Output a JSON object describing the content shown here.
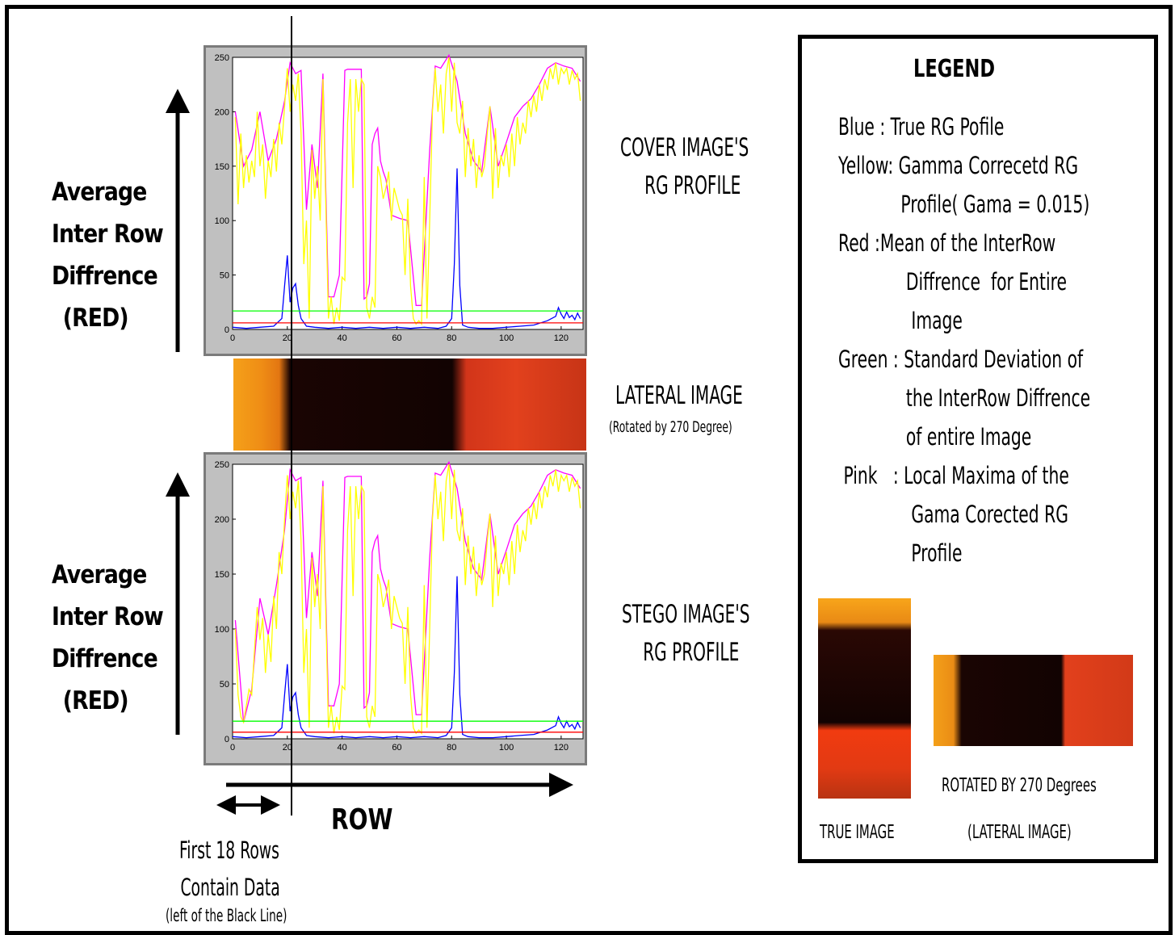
{
  "left_labels": {
    "top": [
      "Average",
      "Inter Row",
      "Diffrence",
      "(RED)"
    ],
    "bottom": [
      "Average",
      "Inter Row",
      "Diffrence",
      "(RED)"
    ]
  },
  "titles": {
    "cover": [
      "COVER IMAGE'S",
      "RG PROFILE"
    ],
    "lateral": "LATERAL IMAGE",
    "lateral_sub": "(Rotated by 270 Degree)",
    "stego": [
      "STEGO IMAGE'S",
      "RG PROFILE"
    ]
  },
  "bottom_labels": {
    "row": "ROW",
    "note": [
      "First 18 Rows",
      "Contain Data",
      "(left of the Black Line)"
    ]
  },
  "legend": {
    "title": "LEGEND",
    "items": [
      "Blue   : True RG Pofile",
      "Yellow: Gamma Correcetd RG",
      "            Profile( Gama = 0.015)",
      "Red    :Mean of the InterRow",
      "             Diffrence  for Entire",
      "              Image",
      "Green : Standard Deviation of",
      "             the InterRow Diffrence",
      "             of entire Image",
      " Pink   : Local Maxima of the",
      "              Gama Corected RG",
      "              Profile"
    ],
    "true_image_label": "TRUE IMAGE",
    "rotated_label": "ROTATED BY 270 Degrees",
    "lateral_label": "(LATERAL IMAGE)"
  },
  "colors": {
    "blue": "#0000ff",
    "yellow": "#ffff00",
    "red": "#ff0000",
    "green": "#00ff00",
    "pink": "#ff00ff",
    "plot_bg": "#c0c0c0"
  },
  "chart_data": [
    {
      "type": "line",
      "xlim": [
        0,
        128
      ],
      "ylim": [
        0,
        250
      ],
      "xticks": [
        0,
        20,
        40,
        60,
        80,
        100,
        120
      ],
      "yticks": [
        0,
        50,
        100,
        150,
        200,
        250
      ],
      "series": [
        {
          "name": "Pink",
          "color": "#ff00ff",
          "x": [
            1,
            4,
            7,
            10,
            13,
            16,
            19,
            21,
            23,
            25,
            27,
            29,
            31,
            33,
            35,
            37,
            39,
            41,
            42,
            43,
            46,
            47,
            48,
            49,
            50,
            51,
            52,
            53,
            54,
            55,
            56,
            58,
            61,
            64,
            67,
            68,
            69,
            72,
            74,
            76,
            79,
            82,
            85,
            88,
            91,
            94,
            97,
            100,
            103,
            106,
            109,
            112,
            115,
            118,
            121,
            124,
            127
          ],
          "y": [
            200,
            150,
            165,
            200,
            155,
            175,
            210,
            245,
            235,
            238,
            110,
            170,
            130,
            235,
            30,
            30,
            50,
            238,
            239,
            239,
            239,
            239,
            28,
            30,
            42,
            170,
            180,
            185,
            155,
            145,
            138,
            105,
            102,
            100,
            22,
            22,
            22,
            165,
            242,
            240,
            252,
            228,
            180,
            155,
            145,
            205,
            150,
            172,
            195,
            205,
            212,
            225,
            240,
            245,
            242,
            240,
            228
          ]
        },
        {
          "name": "Yellow",
          "color": "#ffff00",
          "x": [
            1,
            2,
            3,
            4,
            5,
            6,
            7,
            8,
            9,
            10,
            11,
            12,
            13,
            14,
            15,
            16,
            17,
            18,
            19,
            20,
            21,
            22,
            23,
            24,
            25,
            26,
            27,
            28,
            29,
            30,
            31,
            32,
            33,
            34,
            35,
            36,
            37,
            38,
            39,
            40,
            41,
            42,
            43,
            44,
            45,
            46,
            47,
            48,
            49,
            50,
            51,
            52,
            53,
            54,
            55,
            56,
            57,
            58,
            59,
            60,
            61,
            62,
            63,
            64,
            65,
            66,
            67,
            68,
            69,
            70,
            71,
            72,
            73,
            74,
            75,
            76,
            77,
            78,
            79,
            80,
            81,
            82,
            83,
            84,
            85,
            86,
            87,
            88,
            89,
            90,
            91,
            92,
            93,
            94,
            95,
            96,
            97,
            98,
            99,
            100,
            101,
            102,
            103,
            104,
            105,
            106,
            107,
            108,
            109,
            110,
            111,
            112,
            113,
            114,
            115,
            116,
            117,
            118,
            119,
            120,
            121,
            122,
            123,
            124,
            125,
            126,
            127
          ],
          "y": [
            195,
            115,
            180,
            130,
            160,
            135,
            155,
            140,
            200,
            150,
            170,
            120,
            155,
            140,
            175,
            145,
            190,
            170,
            205,
            240,
            200,
            225,
            210,
            235,
            180,
            60,
            100,
            10,
            165,
            120,
            150,
            100,
            230,
            120,
            10,
            30,
            5,
            20,
            8,
            48,
            45,
            190,
            230,
            130,
            230,
            200,
            230,
            225,
            20,
            10,
            30,
            20,
            150,
            140,
            120,
            130,
            145,
            100,
            130,
            120,
            110,
            105,
            50,
            120,
            40,
            10,
            5,
            8,
            5,
            140,
            10,
            100,
            200,
            240,
            200,
            225,
            180,
            235,
            250,
            200,
            245,
            190,
            180,
            210,
            140,
            185,
            150,
            175,
            130,
            160,
            140,
            150,
            180,
            205,
            120,
            185,
            130,
            160,
            150,
            170,
            140,
            180,
            150,
            195,
            170,
            190,
            180,
            210,
            195,
            215,
            200,
            225,
            210,
            230,
            220,
            240,
            230,
            245,
            225,
            240,
            235,
            240,
            225,
            238,
            230,
            235,
            210
          ]
        },
        {
          "name": "Blue",
          "color": "#0000ff",
          "x": [
            0,
            5,
            10,
            15,
            18,
            19,
            20,
            21,
            22,
            23,
            24,
            25,
            27,
            30,
            35,
            40,
            45,
            50,
            55,
            60,
            65,
            70,
            75,
            78,
            80,
            81,
            82,
            83,
            84,
            86,
            90,
            95,
            100,
            105,
            110,
            115,
            118,
            119,
            120,
            121,
            122,
            123,
            124,
            125,
            126,
            127
          ],
          "y": [
            2,
            1,
            2,
            3,
            10,
            40,
            68,
            25,
            38,
            42,
            22,
            10,
            3,
            2,
            1,
            2,
            1,
            2,
            1,
            2,
            1,
            2,
            1,
            3,
            10,
            60,
            148,
            40,
            4,
            2,
            1,
            1,
            2,
            3,
            4,
            8,
            12,
            20,
            14,
            10,
            16,
            11,
            13,
            9,
            15,
            10
          ]
        },
        {
          "name": "Red",
          "color": "#ff0000",
          "x": [
            0,
            128
          ],
          "y": [
            6,
            6
          ]
        },
        {
          "name": "Green",
          "color": "#00ff00",
          "x": [
            0,
            128
          ],
          "y": [
            17,
            17
          ]
        }
      ]
    },
    {
      "type": "line",
      "xlim": [
        0,
        128
      ],
      "ylim": [
        0,
        250
      ],
      "xticks": [
        0,
        20,
        40,
        60,
        80,
        100,
        120
      ],
      "yticks": [
        0,
        50,
        100,
        150,
        200,
        250
      ],
      "series": [
        {
          "name": "Pink",
          "color": "#ff00ff",
          "x": [
            1,
            4,
            7,
            10,
            13,
            16,
            19,
            21,
            23,
            25,
            27,
            29,
            31,
            33,
            35,
            37,
            39,
            41,
            42,
            43,
            46,
            47,
            48,
            49,
            50,
            51,
            52,
            53,
            54,
            55,
            56,
            58,
            61,
            64,
            67,
            68,
            69,
            72,
            74,
            76,
            79,
            82,
            85,
            88,
            91,
            94,
            97,
            100,
            103,
            106,
            109,
            112,
            115,
            118,
            121,
            124,
            127
          ],
          "y": [
            108,
            15,
            45,
            128,
            95,
            140,
            190,
            245,
            235,
            238,
            110,
            170,
            130,
            235,
            30,
            30,
            50,
            238,
            239,
            239,
            239,
            239,
            28,
            30,
            42,
            170,
            180,
            185,
            155,
            145,
            138,
            105,
            102,
            100,
            22,
            22,
            22,
            165,
            242,
            240,
            252,
            228,
            180,
            155,
            145,
            205,
            150,
            172,
            195,
            205,
            212,
            225,
            240,
            245,
            242,
            240,
            228
          ]
        },
        {
          "name": "Yellow",
          "color": "#ffff00",
          "x": [
            1,
            2,
            3,
            4,
            5,
            6,
            7,
            8,
            9,
            10,
            11,
            12,
            13,
            14,
            15,
            16,
            17,
            18,
            19,
            20,
            21,
            22,
            23,
            24,
            25,
            26,
            27,
            28,
            29,
            30,
            31,
            32,
            33,
            34,
            35,
            36,
            37,
            38,
            39,
            40,
            41,
            42,
            43,
            44,
            45,
            46,
            47,
            48,
            49,
            50,
            51,
            52,
            53,
            54,
            55,
            56,
            57,
            58,
            59,
            60,
            61,
            62,
            63,
            64,
            65,
            66,
            67,
            68,
            69,
            70,
            71,
            72,
            73,
            74,
            75,
            76,
            77,
            78,
            79,
            80,
            81,
            82,
            83,
            84,
            85,
            86,
            87,
            88,
            89,
            90,
            91,
            92,
            93,
            94,
            95,
            96,
            97,
            98,
            99,
            100,
            101,
            102,
            103,
            104,
            105,
            106,
            107,
            108,
            109,
            110,
            111,
            112,
            113,
            114,
            115,
            116,
            117,
            118,
            119,
            120,
            121,
            122,
            123,
            124,
            125,
            126,
            127
          ],
          "y": [
            100,
            40,
            20,
            15,
            30,
            45,
            40,
            80,
            120,
            90,
            110,
            60,
            95,
            70,
            130,
            100,
            170,
            150,
            200,
            240,
            200,
            225,
            210,
            235,
            180,
            60,
            100,
            10,
            165,
            120,
            150,
            100,
            230,
            120,
            10,
            30,
            5,
            20,
            8,
            48,
            45,
            190,
            230,
            130,
            230,
            200,
            230,
            225,
            20,
            10,
            30,
            20,
            150,
            140,
            120,
            130,
            145,
            100,
            130,
            120,
            110,
            105,
            50,
            120,
            40,
            10,
            5,
            8,
            5,
            140,
            10,
            100,
            200,
            240,
            200,
            225,
            180,
            235,
            250,
            200,
            245,
            190,
            180,
            210,
            140,
            185,
            150,
            175,
            130,
            160,
            140,
            150,
            180,
            205,
            120,
            185,
            130,
            160,
            150,
            170,
            140,
            180,
            150,
            195,
            170,
            190,
            180,
            210,
            195,
            215,
            200,
            225,
            210,
            230,
            220,
            240,
            230,
            245,
            225,
            240,
            235,
            240,
            225,
            238,
            230,
            235,
            210
          ]
        },
        {
          "name": "Blue",
          "color": "#0000ff",
          "x": [
            0,
            5,
            10,
            15,
            18,
            19,
            20,
            21,
            22,
            23,
            24,
            25,
            27,
            30,
            35,
            40,
            45,
            50,
            55,
            60,
            65,
            70,
            75,
            78,
            80,
            81,
            82,
            83,
            84,
            86,
            90,
            95,
            100,
            105,
            110,
            115,
            118,
            119,
            120,
            121,
            122,
            123,
            124,
            125,
            126,
            127
          ],
          "y": [
            2,
            1,
            2,
            3,
            10,
            40,
            68,
            25,
            38,
            42,
            22,
            10,
            3,
            2,
            1,
            2,
            1,
            2,
            1,
            2,
            1,
            2,
            1,
            3,
            10,
            60,
            148,
            40,
            4,
            2,
            1,
            1,
            2,
            3,
            4,
            8,
            12,
            20,
            14,
            10,
            16,
            11,
            13,
            9,
            15,
            10
          ]
        },
        {
          "name": "Red",
          "color": "#ff0000",
          "x": [
            0,
            128
          ],
          "y": [
            6,
            6
          ]
        },
        {
          "name": "Green",
          "color": "#00ff00",
          "x": [
            0,
            128
          ],
          "y": [
            16,
            16
          ]
        }
      ]
    }
  ]
}
